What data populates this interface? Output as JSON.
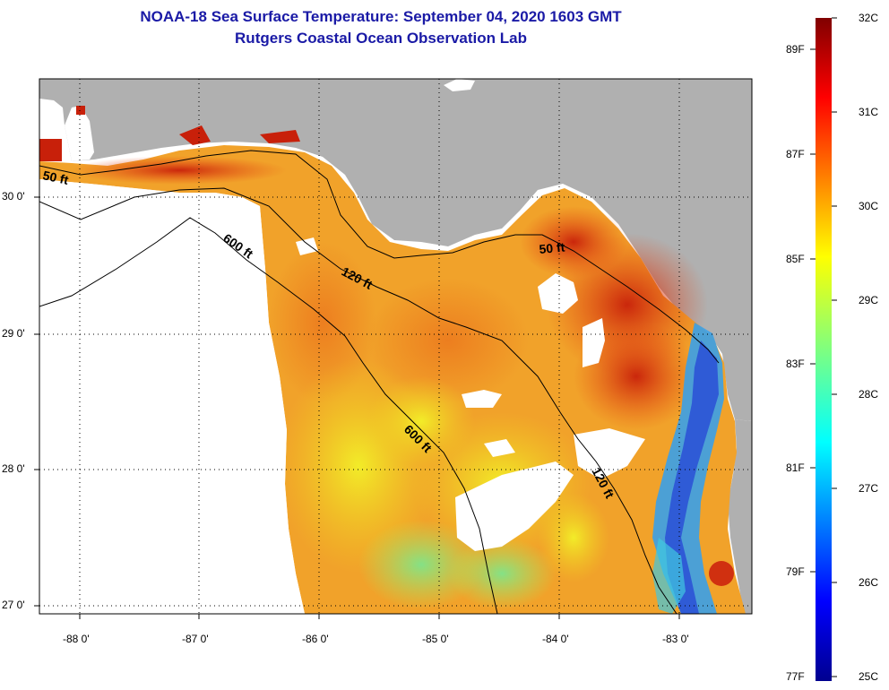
{
  "header": {
    "title": "NOAA-18 Sea Surface Temperature:  September 04, 2020 1603 GMT",
    "subtitle": "Rutgers Coastal Ocean Observation Lab"
  },
  "axes": {
    "latitude_labels": [
      "30 0'",
      "29 0'",
      "28 0'",
      "27 0'"
    ],
    "longitude_labels": [
      "-88 0'",
      "-87 0'",
      "-86 0'",
      "-85 0'",
      "-84 0'",
      "-83 0'"
    ]
  },
  "contours": {
    "label_50": "50 ft",
    "label_120": "120 ft",
    "label_600": "600 ft"
  },
  "colorbar": {
    "fahrenheit": [
      "89F",
      "87F",
      "85F",
      "83F",
      "81F",
      "79F",
      "77F"
    ],
    "celsius": [
      "32C",
      "31C",
      "30C",
      "29C",
      "28C",
      "27C",
      "26C",
      "25C"
    ],
    "min_c": 25,
    "max_c": 32
  },
  "colors": {
    "title": "#1a1aa6",
    "land": "#b0b0b0",
    "warm": "#e8501a",
    "cold": "#2a4fd6"
  }
}
